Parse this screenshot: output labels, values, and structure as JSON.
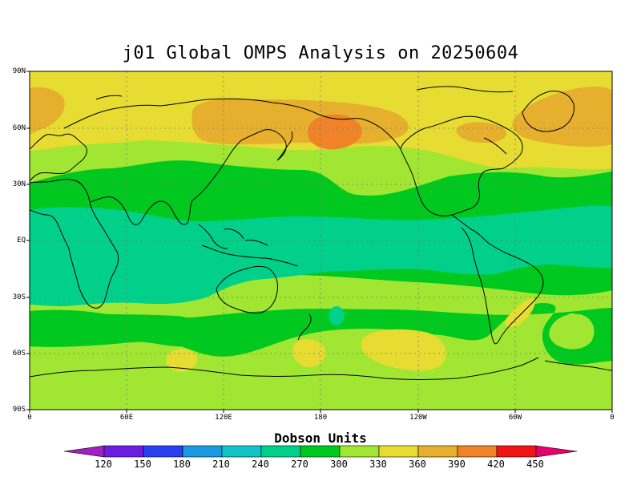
{
  "title": "j01 Global OMPS Analysis on 20250604",
  "y_axis_labels": [
    "90N",
    "60N",
    "30N",
    "EQ",
    "30S",
    "60S",
    "90S"
  ],
  "x_axis_labels": [
    "0",
    "60E",
    "120E",
    "180",
    "120W",
    "60W",
    "0"
  ],
  "colorbar": {
    "title": "Dobson Units",
    "ticks": [
      "120",
      "150",
      "180",
      "210",
      "240",
      "270",
      "300",
      "330",
      "360",
      "390",
      "420",
      "450"
    ],
    "colors": [
      "#a020c0",
      "#6a1ee0",
      "#2a40f0",
      "#1a98e0",
      "#12c4c8",
      "#00d08a",
      "#00c81e",
      "#a0e632",
      "#e6dc32",
      "#e6af2d",
      "#f08228",
      "#f01414",
      "#e6006e"
    ]
  },
  "legend_colors": {
    "300_330": "#00c81e",
    "270_300": "#00d08a",
    "330_360": "#a0e632",
    "360_390": "#e6dc32",
    "390_420": "#e6af2d",
    "420_450": "#f08228"
  }
}
